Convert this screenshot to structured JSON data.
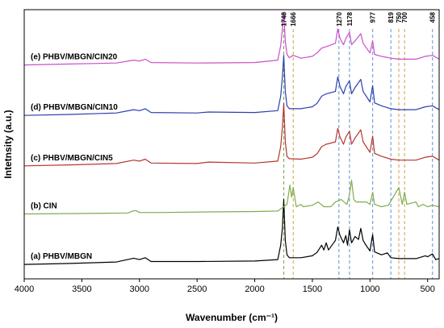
{
  "chart_data": {
    "type": "line",
    "title": "",
    "xlabel": "Wavenumber (cm⁻¹)",
    "ylabel": "Intetnsity (a.u.)",
    "x_reversed": true,
    "xlim": [
      4000,
      400
    ],
    "xticks": [
      4000,
      3500,
      3000,
      2500,
      2000,
      1500,
      1000,
      500
    ],
    "ylim": [
      0,
      5.6
    ],
    "y_ticks_shown": false,
    "grid": false,
    "series": [
      {
        "name": "(a) PHBV/MBGN",
        "color": "#000000",
        "offset": 0.3,
        "points": [
          [
            4000,
            0.0
          ],
          [
            3600,
            0.02
          ],
          [
            3200,
            0.05
          ],
          [
            3050,
            0.13
          ],
          [
            3000,
            0.1
          ],
          [
            2950,
            0.14
          ],
          [
            2900,
            0.06
          ],
          [
            2500,
            0.06
          ],
          [
            2000,
            0.07
          ],
          [
            1800,
            0.1
          ],
          [
            1775,
            0.4
          ],
          [
            1760,
            0.75
          ],
          [
            1748,
            1.35
          ],
          [
            1735,
            0.5
          ],
          [
            1720,
            0.2
          ],
          [
            1700,
            0.14
          ],
          [
            1600,
            0.14
          ],
          [
            1500,
            0.18
          ],
          [
            1460,
            0.25
          ],
          [
            1420,
            0.4
          ],
          [
            1400,
            0.3
          ],
          [
            1380,
            0.45
          ],
          [
            1360,
            0.3
          ],
          [
            1300,
            0.5
          ],
          [
            1280,
            0.78
          ],
          [
            1260,
            0.6
          ],
          [
            1230,
            0.45
          ],
          [
            1210,
            0.6
          ],
          [
            1195,
            0.4
          ],
          [
            1178,
            0.72
          ],
          [
            1160,
            0.45
          ],
          [
            1130,
            0.58
          ],
          [
            1100,
            0.52
          ],
          [
            1080,
            0.75
          ],
          [
            1060,
            0.5
          ],
          [
            1040,
            0.42
          ],
          [
            1000,
            0.28
          ],
          [
            977,
            0.62
          ],
          [
            960,
            0.26
          ],
          [
            900,
            0.2
          ],
          [
            850,
            0.24
          ],
          [
            819,
            0.14
          ],
          [
            750,
            0.12
          ],
          [
            700,
            0.12
          ],
          [
            600,
            0.12
          ],
          [
            520,
            0.18
          ],
          [
            500,
            0.16
          ],
          [
            458,
            0.22
          ],
          [
            430,
            0.1
          ],
          [
            400,
            0.12
          ]
        ]
      },
      {
        "name": "(b) CIN",
        "color": "#7fac4f",
        "offset": 1.35,
        "points": [
          [
            4000,
            0.0
          ],
          [
            3500,
            0.01
          ],
          [
            3100,
            0.02
          ],
          [
            3060,
            0.06
          ],
          [
            3030,
            0.07
          ],
          [
            3000,
            0.03
          ],
          [
            2800,
            0.03
          ],
          [
            2500,
            0.04
          ],
          [
            2000,
            0.05
          ],
          [
            1800,
            0.06
          ],
          [
            1720,
            0.2
          ],
          [
            1695,
            0.6
          ],
          [
            1680,
            0.35
          ],
          [
            1666,
            0.55
          ],
          [
            1640,
            0.15
          ],
          [
            1600,
            0.2
          ],
          [
            1580,
            0.15
          ],
          [
            1500,
            0.18
          ],
          [
            1450,
            0.25
          ],
          [
            1400,
            0.15
          ],
          [
            1340,
            0.15
          ],
          [
            1300,
            0.25
          ],
          [
            1250,
            0.3
          ],
          [
            1200,
            0.2
          ],
          [
            1178,
            0.4
          ],
          [
            1160,
            0.7
          ],
          [
            1140,
            0.3
          ],
          [
            1120,
            0.25
          ],
          [
            1080,
            0.25
          ],
          [
            1030,
            0.25
          ],
          [
            1000,
            0.2
          ],
          [
            977,
            0.45
          ],
          [
            960,
            0.2
          ],
          [
            900,
            0.15
          ],
          [
            840,
            0.18
          ],
          [
            750,
            0.55
          ],
          [
            720,
            0.2
          ],
          [
            700,
            0.45
          ],
          [
            680,
            0.2
          ],
          [
            600,
            0.25
          ],
          [
            580,
            0.15
          ],
          [
            540,
            0.2
          ],
          [
            500,
            0.15
          ],
          [
            458,
            0.18
          ],
          [
            400,
            0.15
          ]
        ]
      },
      {
        "name": "(c) PHBV/MBGN/CIN5",
        "color": "#b5352f",
        "offset": 2.35,
        "points": [
          [
            4000,
            0.0
          ],
          [
            3600,
            0.02
          ],
          [
            3200,
            0.05
          ],
          [
            3050,
            0.12
          ],
          [
            3000,
            0.1
          ],
          [
            2950,
            0.14
          ],
          [
            2900,
            0.06
          ],
          [
            2500,
            0.05
          ],
          [
            2400,
            0.08
          ],
          [
            2000,
            0.06
          ],
          [
            1800,
            0.1
          ],
          [
            1775,
            0.4
          ],
          [
            1760,
            0.8
          ],
          [
            1748,
            1.3
          ],
          [
            1735,
            0.5
          ],
          [
            1720,
            0.2
          ],
          [
            1700,
            0.15
          ],
          [
            1600,
            0.14
          ],
          [
            1500,
            0.18
          ],
          [
            1460,
            0.25
          ],
          [
            1420,
            0.4
          ],
          [
            1380,
            0.45
          ],
          [
            1300,
            0.5
          ],
          [
            1280,
            0.78
          ],
          [
            1260,
            0.6
          ],
          [
            1230,
            0.45
          ],
          [
            1210,
            0.6
          ],
          [
            1178,
            0.72
          ],
          [
            1160,
            0.45
          ],
          [
            1130,
            0.58
          ],
          [
            1080,
            0.75
          ],
          [
            1060,
            0.5
          ],
          [
            1000,
            0.28
          ],
          [
            977,
            0.62
          ],
          [
            960,
            0.26
          ],
          [
            900,
            0.2
          ],
          [
            819,
            0.14
          ],
          [
            750,
            0.12
          ],
          [
            600,
            0.12
          ],
          [
            520,
            0.18
          ],
          [
            458,
            0.2
          ],
          [
            400,
            0.12
          ]
        ]
      },
      {
        "name": "(d) PHBV/MBGN/CIN10",
        "color": "#2b3fb1",
        "offset": 3.4,
        "points": [
          [
            4000,
            0.0
          ],
          [
            3600,
            0.02
          ],
          [
            3200,
            0.05
          ],
          [
            3050,
            0.12
          ],
          [
            3000,
            0.1
          ],
          [
            2950,
            0.14
          ],
          [
            2900,
            0.06
          ],
          [
            2500,
            0.05
          ],
          [
            2400,
            0.07
          ],
          [
            2000,
            0.06
          ],
          [
            1800,
            0.1
          ],
          [
            1775,
            0.4
          ],
          [
            1760,
            0.8
          ],
          [
            1748,
            1.25
          ],
          [
            1735,
            0.5
          ],
          [
            1720,
            0.2
          ],
          [
            1700,
            0.14
          ],
          [
            1600,
            0.14
          ],
          [
            1500,
            0.18
          ],
          [
            1460,
            0.25
          ],
          [
            1420,
            0.4
          ],
          [
            1380,
            0.45
          ],
          [
            1300,
            0.5
          ],
          [
            1280,
            0.8
          ],
          [
            1260,
            0.6
          ],
          [
            1230,
            0.45
          ],
          [
            1210,
            0.6
          ],
          [
            1178,
            0.72
          ],
          [
            1160,
            0.45
          ],
          [
            1130,
            0.58
          ],
          [
            1080,
            0.75
          ],
          [
            1060,
            0.5
          ],
          [
            1000,
            0.28
          ],
          [
            977,
            0.62
          ],
          [
            960,
            0.26
          ],
          [
            900,
            0.2
          ],
          [
            819,
            0.14
          ],
          [
            750,
            0.12
          ],
          [
            600,
            0.12
          ],
          [
            520,
            0.18
          ],
          [
            458,
            0.2
          ],
          [
            400,
            0.12
          ]
        ]
      },
      {
        "name": "(e) PHBV/MBGN/CIN20",
        "color": "#c94fcc",
        "offset": 4.45,
        "points": [
          [
            4000,
            0.0
          ],
          [
            3600,
            0.02
          ],
          [
            3200,
            0.04
          ],
          [
            3050,
            0.1
          ],
          [
            3000,
            0.08
          ],
          [
            2950,
            0.12
          ],
          [
            2900,
            0.05
          ],
          [
            2500,
            0.04
          ],
          [
            2000,
            0.05
          ],
          [
            1800,
            0.1
          ],
          [
            1775,
            0.4
          ],
          [
            1760,
            0.75
          ],
          [
            1748,
            1.1
          ],
          [
            1735,
            0.5
          ],
          [
            1720,
            0.22
          ],
          [
            1700,
            0.15
          ],
          [
            1666,
            0.2
          ],
          [
            1600,
            0.14
          ],
          [
            1500,
            0.18
          ],
          [
            1460,
            0.25
          ],
          [
            1420,
            0.35
          ],
          [
            1380,
            0.38
          ],
          [
            1300,
            0.45
          ],
          [
            1280,
            0.75
          ],
          [
            1260,
            0.55
          ],
          [
            1230,
            0.42
          ],
          [
            1210,
            0.55
          ],
          [
            1178,
            0.68
          ],
          [
            1160,
            0.42
          ],
          [
            1130,
            0.5
          ],
          [
            1080,
            0.65
          ],
          [
            1060,
            0.45
          ],
          [
            1000,
            0.25
          ],
          [
            977,
            0.5
          ],
          [
            960,
            0.22
          ],
          [
            900,
            0.18
          ],
          [
            819,
            0.14
          ],
          [
            750,
            0.12
          ],
          [
            600,
            0.12
          ],
          [
            520,
            0.18
          ],
          [
            458,
            0.2
          ],
          [
            400,
            0.12
          ]
        ]
      }
    ],
    "reference_lines": [
      {
        "x": 1748,
        "label": "1748",
        "color": "#7fa94a"
      },
      {
        "x": 1666,
        "label": "1666",
        "color": "#d7a85a"
      },
      {
        "x": 1270,
        "label": "1270",
        "color": "#6e9bd3"
      },
      {
        "x": 1178,
        "label": "1178",
        "color": "#6e9bd3"
      },
      {
        "x": 977,
        "label": "977",
        "color": "#6e9bd3"
      },
      {
        "x": 819,
        "label": "819",
        "color": "#6e9bd3"
      },
      {
        "x": 750,
        "label": "750",
        "color": "#d7a85a"
      },
      {
        "x": 700,
        "label": "700",
        "color": "#d7a85a"
      },
      {
        "x": 458,
        "label": "458",
        "color": "#6e9bd3"
      }
    ]
  }
}
